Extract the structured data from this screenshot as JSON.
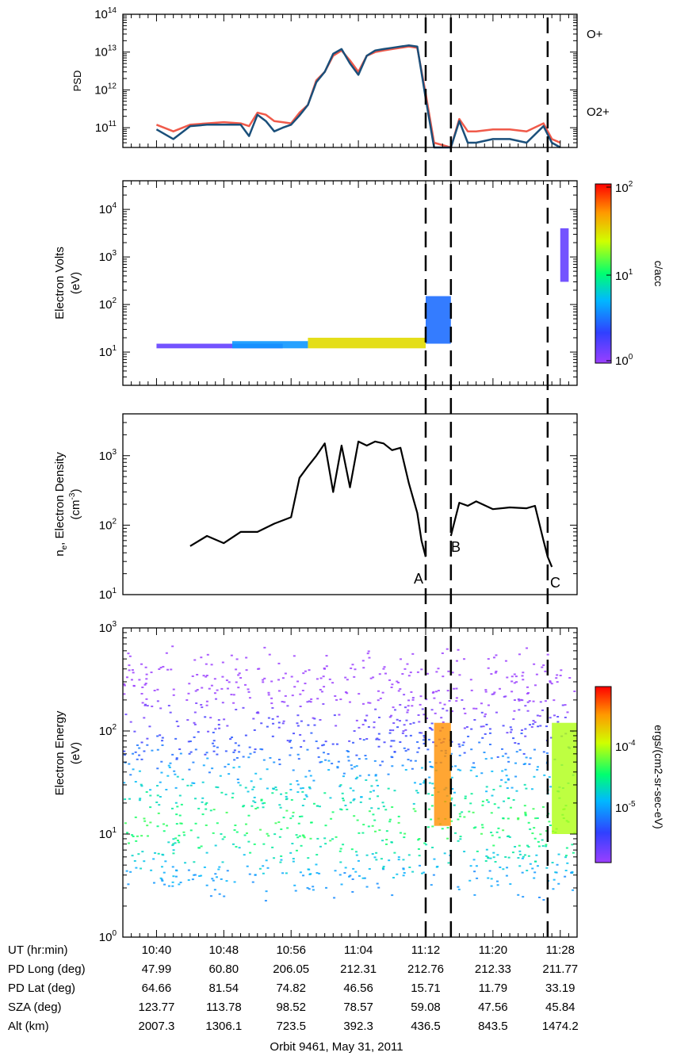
{
  "chart_data": [
    {
      "type": "line",
      "panel": "PSD",
      "ylabel": "PSD",
      "yscale": "log",
      "ylim": [
        30000000000.0,
        100000000000000.0
      ],
      "y_ticks": [
        "10^11",
        "10^12",
        "10^13",
        "10^14"
      ],
      "x_ticks": [
        "10:40",
        "10:48",
        "10:56",
        "11:04",
        "11:12",
        "11:20",
        "11:28"
      ],
      "series": [
        {
          "name": "O+",
          "color": "#f05a4a",
          "x": [
            "10:40",
            "10:42",
            "10:44",
            "10:46",
            "10:48",
            "10:50",
            "10:51",
            "10:52",
            "10:53",
            "10:54",
            "10:55",
            "10:56",
            "10:57",
            "10:58",
            "10:59",
            "11:00",
            "11:01",
            "11:02",
            "11:03",
            "11:04",
            "11:05",
            "11:06",
            "11:07",
            "11:08",
            "11:09",
            "11:10",
            "11:11",
            "11:12",
            "11:13",
            "11:15",
            "11:16",
            "11:17",
            "11:18",
            "11:20",
            "11:22",
            "11:24",
            "11:26",
            "11:27",
            "11:28"
          ],
          "values": [
            120000000000.0,
            80000000000.0,
            120000000000.0,
            130000000000.0,
            140000000000.0,
            130000000000.0,
            110000000000.0,
            250000000000.0,
            220000000000.0,
            150000000000.0,
            140000000000.0,
            130000000000.0,
            250000000000.0,
            400000000000.0,
            1800000000000.0,
            3000000000000.0,
            8000000000000.0,
            11000000000000.0,
            6000000000000.0,
            3000000000000.0,
            8000000000000.0,
            10000000000000.0,
            11000000000000.0,
            12000000000000.0,
            13000000000000.0,
            14000000000000.0,
            13000000000000.0,
            800000000000.0,
            40000000000.0,
            30000000000.0,
            170000000000.0,
            80000000000.0,
            80000000000.0,
            90000000000.0,
            90000000000.0,
            80000000000.0,
            130000000000.0,
            50000000000.0,
            40000000000.0
          ]
        },
        {
          "name": "O2+",
          "color": "#1a4f7a",
          "x": [
            "10:40",
            "10:42",
            "10:44",
            "10:46",
            "10:48",
            "10:50",
            "10:51",
            "10:52",
            "10:53",
            "10:54",
            "10:55",
            "10:56",
            "10:57",
            "10:58",
            "10:59",
            "11:00",
            "11:01",
            "11:02",
            "11:03",
            "11:04",
            "11:05",
            "11:06",
            "11:07",
            "11:08",
            "11:09",
            "11:10",
            "11:11",
            "11:12",
            "11:13",
            "11:15",
            "11:16",
            "11:17",
            "11:18",
            "11:20",
            "11:22",
            "11:24",
            "11:26",
            "11:27",
            "11:28"
          ],
          "values": [
            90000000000.0,
            50000000000.0,
            110000000000.0,
            120000000000.0,
            120000000000.0,
            120000000000.0,
            60000000000.0,
            220000000000.0,
            150000000000.0,
            80000000000.0,
            100000000000.0,
            120000000000.0,
            210000000000.0,
            400000000000.0,
            1600000000000.0,
            3000000000000.0,
            9000000000000.0,
            12000000000000.0,
            5000000000000.0,
            2500000000000.0,
            8000000000000.0,
            11000000000000.0,
            12000000000000.0,
            13000000000000.0,
            14000000000000.0,
            15000000000000.0,
            14000000000000.0,
            600000000000.0,
            30000000000.0,
            30000000000.0,
            150000000000.0,
            40000000000.0,
            40000000000.0,
            50000000000.0,
            50000000000.0,
            40000000000.0,
            110000000000.0,
            40000000000.0,
            30000000000.0
          ]
        }
      ],
      "annotations": [
        "O+",
        "O2+"
      ]
    },
    {
      "type": "heatmap",
      "panel": "electron-volts",
      "ylabel": "Electron Volts (eV)",
      "yscale": "log",
      "ylim": [
        2,
        40000
      ],
      "y_ticks": [
        "10^1",
        "10^2",
        "10^3",
        "10^4"
      ],
      "colorbar": {
        "label": "c/acc",
        "scale": "log",
        "ticks": [
          "10^0",
          "10^1",
          "10^2"
        ]
      },
      "blobs": [
        {
          "t_start": "10:40",
          "t_end": "10:55",
          "e_low": 12,
          "e_high": 15,
          "level": 1.5
        },
        {
          "t_start": "10:49",
          "t_end": "10:58",
          "e_low": 12,
          "e_high": 17,
          "level": 4
        },
        {
          "t_start": "10:58",
          "t_end": "11:12",
          "e_low": 12,
          "e_high": 20,
          "level": 30
        },
        {
          "t_start": "11:12",
          "t_end": "11:15",
          "e_low": 15,
          "e_high": 150,
          "level": 3
        },
        {
          "t_start": "11:28",
          "t_end": "11:29",
          "e_low": 300,
          "e_high": 4000,
          "level": 1.5
        }
      ]
    },
    {
      "type": "line",
      "panel": "density",
      "ylabel": "n_e, Electron Density (cm^-3)",
      "yscale": "log",
      "ylim": [
        10,
        4000
      ],
      "y_ticks": [
        "10^1",
        "10^2",
        "10^3"
      ],
      "series": [
        {
          "x": [
            "10:44",
            "10:46",
            "10:48",
            "10:50",
            "10:52",
            "10:54",
            "10:56",
            "10:57",
            "10:58",
            "10:59",
            "11:00",
            "11:01",
            "11:02",
            "11:03",
            "11:04",
            "11:05",
            "11:06",
            "11:07",
            "11:08",
            "11:09",
            "11:10",
            "11:11",
            "11:11.5",
            "11:12"
          ],
          "values": [
            50,
            70,
            55,
            80,
            80,
            105,
            130,
            480,
            700,
            1000,
            1500,
            300,
            1400,
            350,
            1600,
            1400,
            1600,
            1500,
            1200,
            1300,
            400,
            150,
            60,
            35
          ]
        },
        {
          "x": [
            "11:15",
            "11:16",
            "11:17",
            "11:18",
            "11:20",
            "11:22",
            "11:24",
            "11:25",
            "11:26",
            "11:26.5",
            "11:27"
          ],
          "values": [
            70,
            210,
            190,
            220,
            170,
            180,
            175,
            190,
            60,
            35,
            25
          ]
        }
      ],
      "event_labels": [
        "A",
        "B",
        "C"
      ]
    },
    {
      "type": "heatmap",
      "panel": "electron-energy",
      "ylabel": "Electron Energy (eV)",
      "yscale": "log",
      "ylim": [
        1,
        1000
      ],
      "y_ticks": [
        "10^0",
        "10^1",
        "10^2",
        "10^3"
      ],
      "colorbar": {
        "label": "ergs/(cm2-sr-sec-eV)",
        "scale": "log",
        "ticks": [
          "10^-5",
          "10^-4"
        ]
      }
    }
  ],
  "ephemeris": {
    "rows": [
      {
        "label": "UT (hr:min)",
        "values": [
          "10:40",
          "10:48",
          "10:56",
          "11:04",
          "11:12",
          "11:20",
          "11:28"
        ]
      },
      {
        "label": "PD Long (deg)",
        "values": [
          "47.99",
          "60.80",
          "206.05",
          "212.31",
          "212.76",
          "212.33",
          "211.77"
        ]
      },
      {
        "label": "PD Lat (deg)",
        "values": [
          "64.66",
          "81.54",
          "74.82",
          "46.56",
          "15.71",
          "11.79",
          "33.19"
        ]
      },
      {
        "label": "SZA (deg)",
        "values": [
          "123.77",
          "113.78",
          "98.52",
          "78.57",
          "59.08",
          "47.56",
          "45.84"
        ]
      },
      {
        "label": "Alt (km)",
        "values": [
          "2007.3",
          "1306.1",
          "723.5",
          "392.3",
          "436.5",
          "843.5",
          "1474.2"
        ]
      }
    ],
    "caption": "Orbit 9461, May 31, 2011"
  },
  "event_lines": [
    "11:12",
    "11:15",
    "11:26.5"
  ],
  "colors": {
    "o_plus": "#f05a4a",
    "o2_plus": "#1a4f7a"
  }
}
